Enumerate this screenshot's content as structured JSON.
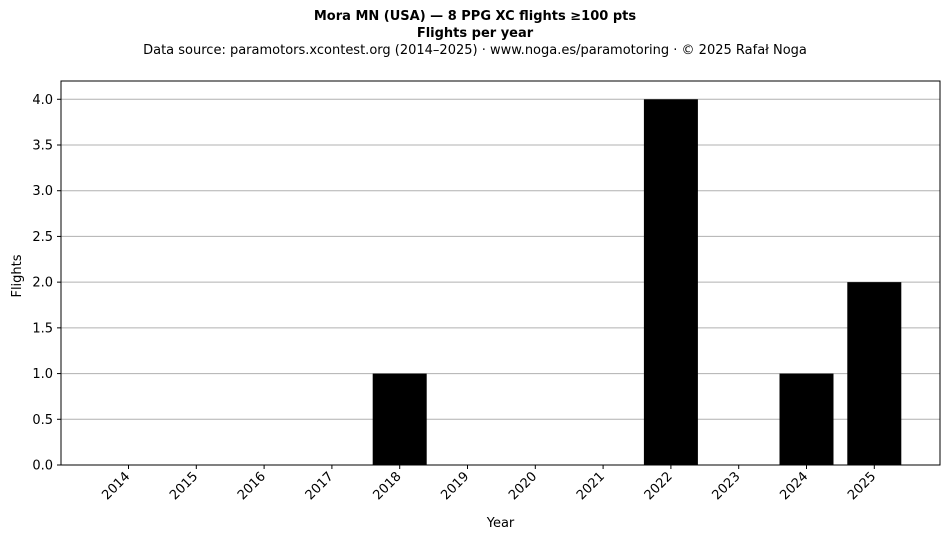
{
  "chart_data": {
    "type": "bar",
    "title": "Mora MN (USA)  —  8 PPG XC flights ≥100 pts",
    "subtitle": "Flights per year",
    "source_note": "Data source: paramotors.xcontest.org (2014–2025)  ·  www.noga.es/paramotoring  ·  © 2025 Rafał Noga",
    "xlabel": "Year",
    "ylabel": "Flights",
    "categories": [
      "2014",
      "2015",
      "2016",
      "2017",
      "2018",
      "2019",
      "2020",
      "2021",
      "2022",
      "2023",
      "2024",
      "2025"
    ],
    "values": [
      0,
      0,
      0,
      0,
      1,
      0,
      0,
      0,
      4,
      0,
      1,
      2
    ],
    "ylim": [
      0,
      4.2
    ],
    "yticks": [
      "0.0",
      "0.5",
      "1.0",
      "1.5",
      "2.0",
      "2.5",
      "3.0",
      "3.5",
      "4.0"
    ],
    "bar_color": "#000000",
    "grid": "horizontal",
    "legend": "none"
  }
}
